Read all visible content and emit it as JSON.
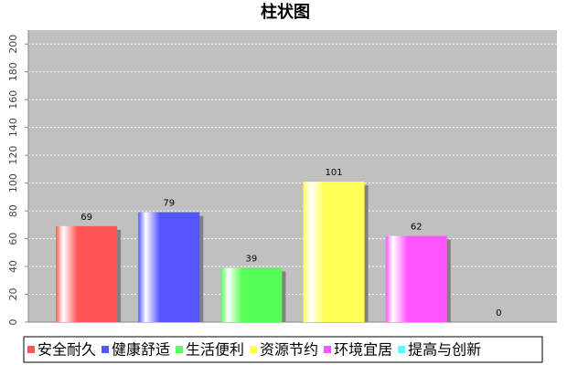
{
  "chart_data": {
    "type": "bar",
    "title": "柱状图",
    "categories": [
      "安全耐久",
      "健康舒适",
      "生活便利",
      "资源节约",
      "环境宜居",
      "提高与创新"
    ],
    "values": [
      69,
      79,
      39,
      101,
      62,
      0
    ],
    "colors": [
      "#ff5555",
      "#5555ff",
      "#55ff55",
      "#ffff55",
      "#ff55ff",
      "#55ffff"
    ],
    "ylim": [
      0,
      210
    ],
    "yticks": [
      0,
      20,
      40,
      60,
      80,
      100,
      120,
      140,
      160,
      180,
      200
    ],
    "grid": true,
    "legend": "bottom"
  }
}
